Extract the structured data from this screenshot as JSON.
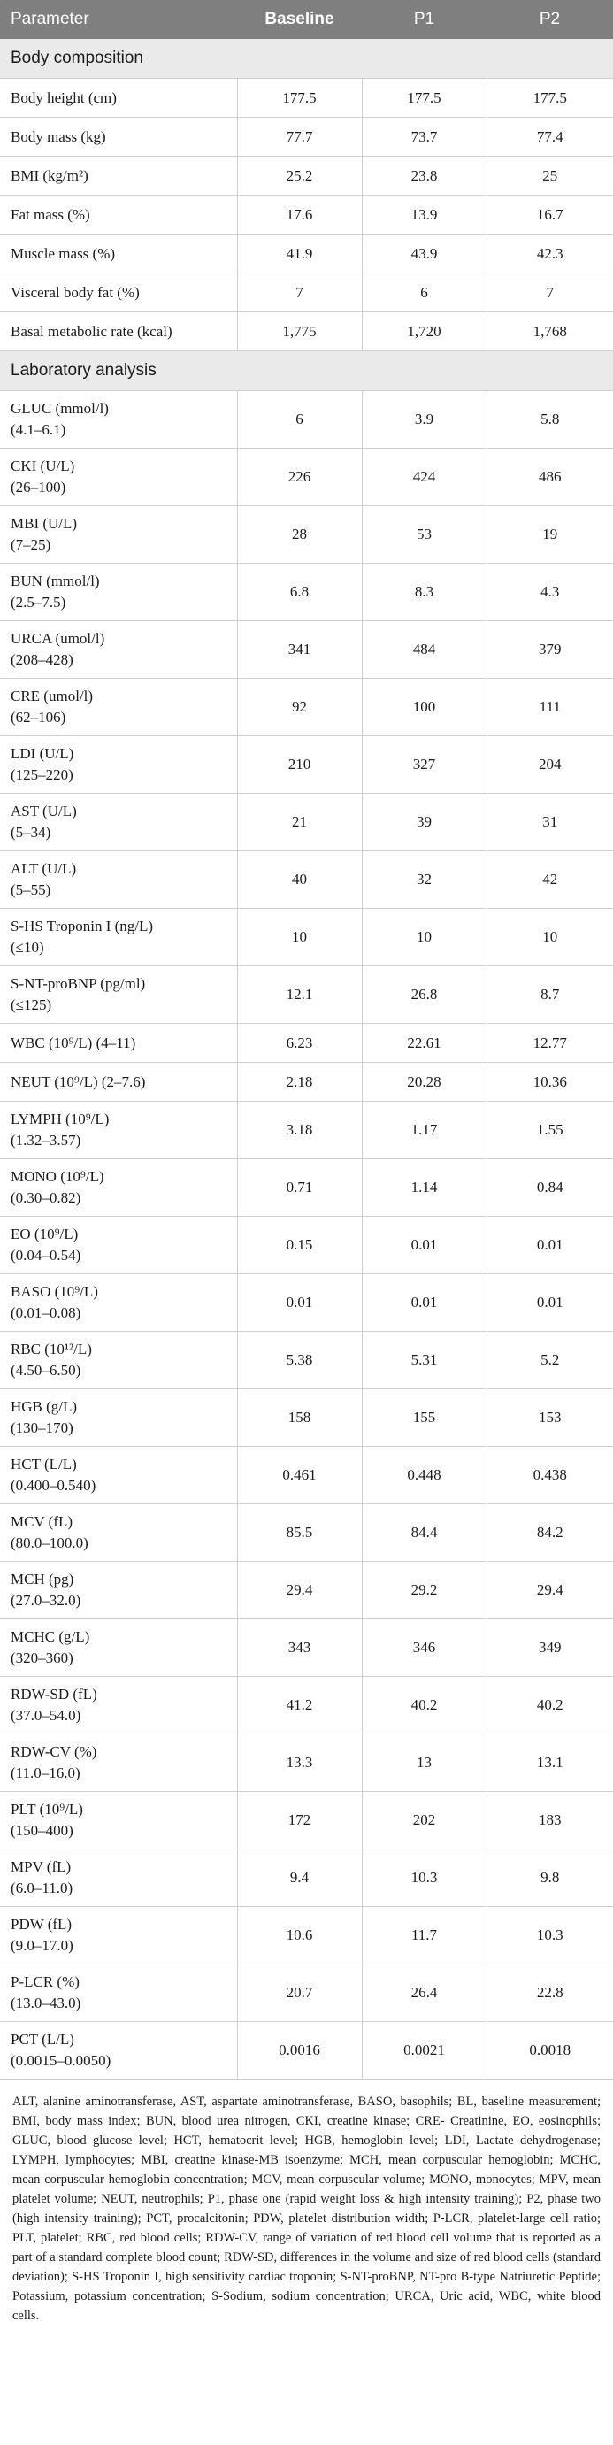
{
  "header": {
    "parameter": "Parameter",
    "baseline": "Baseline",
    "p1": "P1",
    "p2": "P2"
  },
  "sections": [
    {
      "title": "Body composition",
      "rows": [
        {
          "label": "Body height (cm)",
          "baseline": "177.5",
          "p1": "177.5",
          "p2": "177.5"
        },
        {
          "label": "Body mass (kg)",
          "baseline": "77.7",
          "p1": "73.7",
          "p2": "77.4"
        },
        {
          "label": "BMI (kg/m²)",
          "baseline": "25.2",
          "p1": "23.8",
          "p2": "25"
        },
        {
          "label": "Fat mass (%)",
          "baseline": "17.6",
          "p1": "13.9",
          "p2": "16.7"
        },
        {
          "label": "Muscle mass (%)",
          "baseline": "41.9",
          "p1": "43.9",
          "p2": "42.3"
        },
        {
          "label": "Visceral body fat (%)",
          "baseline": "7",
          "p1": "6",
          "p2": "7"
        },
        {
          "label": "Basal metabolic rate (kcal)",
          "baseline": "1,775",
          "p1": "1,720",
          "p2": "1,768"
        }
      ]
    },
    {
      "title": "Laboratory analysis",
      "rows": [
        {
          "label": "GLUC (mmol/l)",
          "range": "(4.1–6.1)",
          "baseline": "6",
          "p1": "3.9",
          "p2": "5.8"
        },
        {
          "label": "CKI (U/L)",
          "range": "(26–100)",
          "baseline": "226",
          "p1": "424",
          "p2": "486"
        },
        {
          "label": "MBI (U/L)",
          "range": "(7–25)",
          "baseline": "28",
          "p1": "53",
          "p2": "19"
        },
        {
          "label": "BUN (mmol/l)",
          "range": "(2.5–7.5)",
          "baseline": "6.8",
          "p1": "8.3",
          "p2": "4.3"
        },
        {
          "label": "URCA (umol/l)",
          "range": "(208–428)",
          "baseline": "341",
          "p1": "484",
          "p2": "379"
        },
        {
          "label": "CRE (umol/l)",
          "range": "(62–106)",
          "baseline": "92",
          "p1": "100",
          "p2": "111"
        },
        {
          "label": "LDI (U/L)",
          "range": "(125–220)",
          "baseline": "210",
          "p1": "327",
          "p2": "204"
        },
        {
          "label": "AST (U/L)",
          "range": "(5–34)",
          "baseline": "21",
          "p1": "39",
          "p2": "31"
        },
        {
          "label": "ALT (U/L)",
          "range": "(5–55)",
          "baseline": "40",
          "p1": "32",
          "p2": "42"
        },
        {
          "label": "S-HS Troponin I (ng/L)",
          "range": "(≤10)",
          "baseline": "10",
          "p1": "10",
          "p2": "10"
        },
        {
          "label": "S-NT-proBNP (pg/ml)",
          "range": "(≤125)",
          "baseline": "12.1",
          "p1": "26.8",
          "p2": "8.7"
        },
        {
          "label": "WBC (10⁹/L) (4–11)",
          "baseline": "6.23",
          "p1": "22.61",
          "p2": "12.77"
        },
        {
          "label": "NEUT (10⁹/L) (2–7.6)",
          "baseline": "2.18",
          "p1": "20.28",
          "p2": "10.36"
        },
        {
          "label": "LYMPH (10⁹/L)",
          "range": "(1.32–3.57)",
          "baseline": "3.18",
          "p1": "1.17",
          "p2": "1.55"
        },
        {
          "label": "MONO (10⁹/L)",
          "range": "(0.30–0.82)",
          "baseline": "0.71",
          "p1": "1.14",
          "p2": "0.84"
        },
        {
          "label": "EO (10⁹/L)",
          "range": "(0.04–0.54)",
          "baseline": "0.15",
          "p1": "0.01",
          "p2": "0.01"
        },
        {
          "label": "BASO (10⁹/L)",
          "range": "(0.01–0.08)",
          "baseline": "0.01",
          "p1": "0.01",
          "p2": "0.01"
        },
        {
          "label": "RBC (10¹²/L)",
          "range": "(4.50–6.50)",
          "baseline": "5.38",
          "p1": "5.31",
          "p2": "5.2"
        },
        {
          "label": "HGB (g/L)",
          "range": "(130–170)",
          "baseline": "158",
          "p1": "155",
          "p2": "153"
        },
        {
          "label": "HCT (L/L)",
          "range": "(0.400–0.540)",
          "baseline": "0.461",
          "p1": "0.448",
          "p2": "0.438"
        },
        {
          "label": "MCV (fL)",
          "range": "(80.0–100.0)",
          "baseline": "85.5",
          "p1": "84.4",
          "p2": "84.2"
        },
        {
          "label": "MCH (pg)",
          "range": "(27.0–32.0)",
          "baseline": "29.4",
          "p1": "29.2",
          "p2": "29.4"
        },
        {
          "label": "MCHC (g/L)",
          "range": "(320–360)",
          "baseline": "343",
          "p1": "346",
          "p2": "349"
        },
        {
          "label": "RDW-SD (fL)",
          "range": "(37.0–54.0)",
          "baseline": "41.2",
          "p1": "40.2",
          "p2": "40.2"
        },
        {
          "label": "RDW-CV (%)",
          "range": "(11.0–16.0)",
          "baseline": "13.3",
          "p1": "13",
          "p2": "13.1"
        },
        {
          "label": "PLT (10⁹/L)",
          "range": "(150–400)",
          "baseline": "172",
          "p1": "202",
          "p2": "183"
        },
        {
          "label": "MPV (fL)",
          "range": "(6.0–11.0)",
          "baseline": "9.4",
          "p1": "10.3",
          "p2": "9.8"
        },
        {
          "label": "PDW (fL)",
          "range": "(9.0–17.0)",
          "baseline": "10.6",
          "p1": "11.7",
          "p2": "10.3"
        },
        {
          "label": "P-LCR (%)",
          "range": "(13.0–43.0)",
          "baseline": "20.7",
          "p1": "26.4",
          "p2": "22.8"
        },
        {
          "label": "PCT (L/L)",
          "range": "(0.0015–0.0050)",
          "baseline": "0.0016",
          "p1": "0.0021",
          "p2": "0.0018"
        }
      ]
    }
  ],
  "footnote": "ALT, alanine aminotransferase, AST, aspartate aminotransferase, BASO, basophils; BL, baseline measurement; BMI, body mass index; BUN, blood urea nitrogen, CKI, creatine kinase; CRE- Creatinine, EO, eosinophils; GLUC, blood glucose level; HCT, hematocrit level; HGB, hemoglobin level; LDI, Lactate dehydrogenase; LYMPH, lymphocytes; MBI, creatine kinase-MB isoenzyme; MCH, mean corpuscular hemoglobin; MCHC, mean corpuscular hemoglobin concentration; MCV, mean corpuscular volume; MONO, monocytes; MPV, mean platelet volume; NEUT, neutrophils; P1, phase one (rapid weight loss & high intensity training); P2, phase two (high intensity training); PCT, procalcitonin; PDW, platelet distribution width; P-LCR, platelet-large cell ratio; PLT, platelet; RBC, red blood cells; RDW-CV, range of variation of red blood cell volume that is reported as a part of a standard complete blood count; RDW-SD, differences in the volume and size of red blood cells (standard deviation); S-HS Troponin I, high sensitivity cardiac troponin; S-NT-proBNP, NT-pro B-type Natriuretic Peptide; Potassium, potassium concentration; S-Sodium, sodium concentration; URCA, Uric acid, WBC, white blood cells."
}
